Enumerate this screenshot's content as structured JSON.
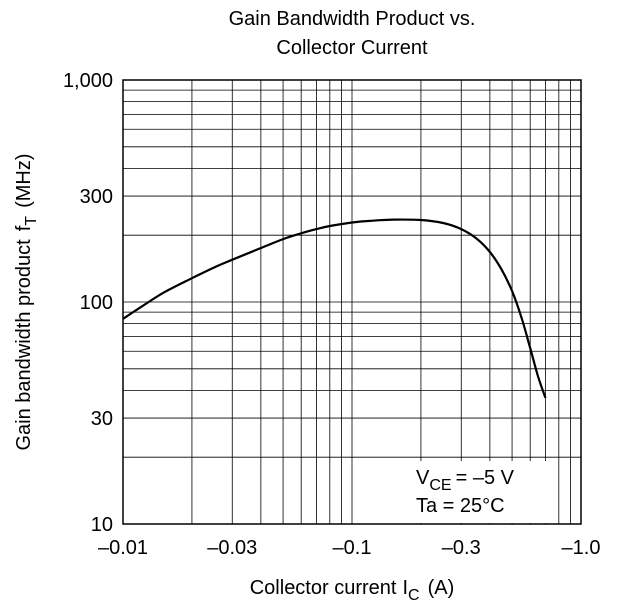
{
  "chart_data": {
    "type": "line",
    "title_lines": [
      "Gain Bandwidth Product vs.",
      "Collector Current"
    ],
    "xlabel": {
      "main": "Collector current",
      "symbol": "I",
      "subscript": "C",
      "unit": "(A)"
    },
    "ylabel": {
      "main": "Gain bandwidth product",
      "symbol": "f",
      "subscript": "T",
      "unit": "(MHz)"
    },
    "x_scale": "log",
    "y_scale": "log",
    "x_axis_direction": "negative values; magnitude increases to the right",
    "xlim": [
      -0.01,
      -1.0
    ],
    "ylim": [
      10,
      1000
    ],
    "x_ticks": [
      {
        "value": -0.01,
        "label": "–0.01"
      },
      {
        "value": -0.03,
        "label": "–0.03"
      },
      {
        "value": -0.1,
        "label": "–0.1"
      },
      {
        "value": -0.3,
        "label": "–0.3"
      },
      {
        "value": -1.0,
        "label": "–1.0"
      }
    ],
    "y_ticks": [
      {
        "value": 10,
        "label": "10"
      },
      {
        "value": 30,
        "label": "30"
      },
      {
        "value": 100,
        "label": "100"
      },
      {
        "value": 300,
        "label": "300"
      },
      {
        "value": 1000,
        "label": "1,000"
      }
    ],
    "grid": true,
    "legend_position": "bottom-right",
    "annotations": {
      "vce": {
        "symbol": "V",
        "subscript": "CE",
        "text": "= –5 V"
      },
      "ta": {
        "text": "Ta = 25°C"
      }
    },
    "series": [
      {
        "x": [
          -0.01,
          -0.012,
          -0.015,
          -0.02,
          -0.025,
          -0.03,
          -0.04,
          -0.05,
          -0.06,
          -0.07,
          -0.08,
          -0.1,
          -0.12,
          -0.15,
          -0.2,
          -0.25,
          -0.3,
          -0.35,
          -0.4,
          -0.45,
          -0.5,
          -0.55,
          -0.6,
          -0.65,
          -0.7
        ],
        "y": [
          84,
          95,
          110,
          128,
          143,
          155,
          175,
          192,
          204,
          213,
          220,
          228,
          232,
          235,
          234,
          227,
          213,
          193,
          168,
          140,
          112,
          85,
          62,
          46,
          37
        ]
      }
    ]
  }
}
